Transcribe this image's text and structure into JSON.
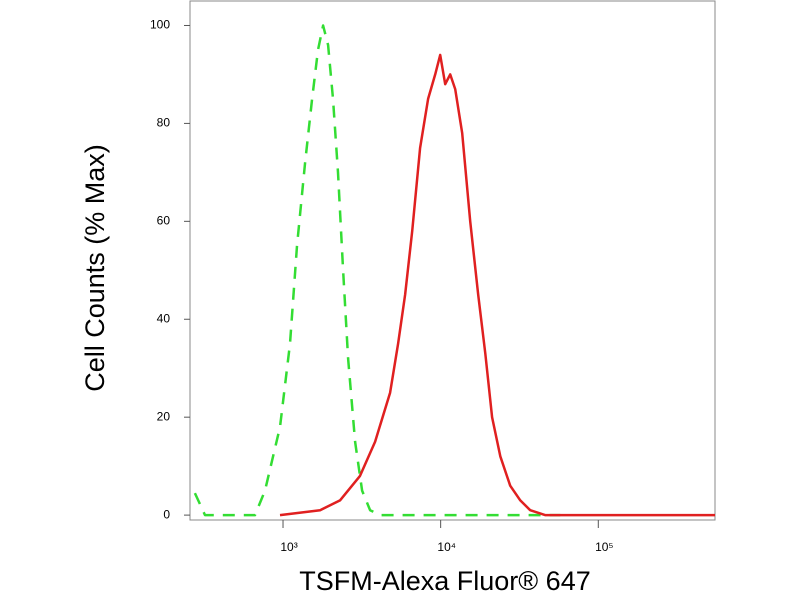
{
  "chart_data": {
    "type": "line",
    "x_label": "TSFM-Alexa Fluor® 647",
    "y_label": "Cell Counts (% Max)",
    "x_scale": "log",
    "xlim": [
      257,
      550000
    ],
    "xticks": [
      {
        "value": 1000,
        "label": "10³"
      },
      {
        "value": 10000,
        "label": "10⁴"
      },
      {
        "value": 100000,
        "label": "10⁵"
      }
    ],
    "ylim": [
      -1,
      105
    ],
    "yticks": [
      0,
      20,
      40,
      60,
      80,
      100
    ],
    "series": [
      {
        "color": "#33dd33",
        "line_style": "dashed",
        "x": [
          276,
          320,
          533,
          664,
          769,
          957,
          1108,
          1227,
          1380,
          1529,
          1667,
          1795,
          1932,
          2076,
          2234,
          2404,
          2589,
          2866,
          3176,
          3566,
          4127,
          57400
        ],
        "values": [
          4.5,
          0,
          0,
          0,
          5,
          18,
          35,
          55,
          72,
          85,
          95,
          100,
          96,
          85,
          70,
          50,
          32,
          15,
          5,
          1,
          0,
          0
        ]
      },
      {
        "color": "#e02020",
        "line_style": "solid",
        "x": [
          957,
          1718,
          2300,
          3080,
          3840,
          4780,
          5370,
          5950,
          6600,
          7410,
          8330,
          9230,
          9930,
          10690,
          11500,
          12360,
          13700,
          15400,
          17300,
          19200,
          21200,
          23900,
          27600,
          32000,
          37000,
          46000,
          550000
        ],
        "values": [
          0,
          1,
          3,
          8,
          15,
          25,
          35,
          45,
          58,
          75,
          85,
          90,
          94,
          88,
          90,
          87,
          78,
          60,
          45,
          33,
          20,
          12,
          6,
          3,
          1,
          0,
          0
        ]
      }
    ]
  }
}
